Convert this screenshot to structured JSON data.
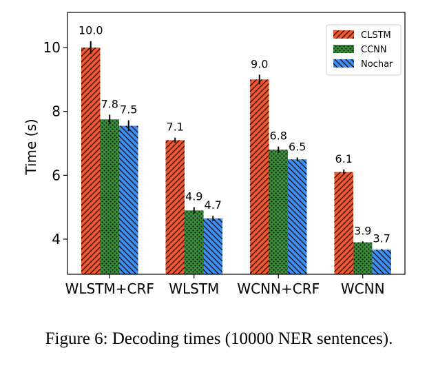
{
  "chart_data": {
    "type": "bar",
    "title": "",
    "xlabel": "",
    "ylabel": "Time (s)",
    "ylim": [
      2.9,
      11.1
    ],
    "yticks": [
      4,
      6,
      8,
      10
    ],
    "categories": [
      "WLSTM+CRF",
      "WLSTM",
      "WCNN+CRF",
      "WCNN"
    ],
    "series": [
      {
        "name": "CLSTM",
        "values": [
          10.0,
          7.1,
          9.0,
          6.1
        ],
        "labels": [
          "10.0",
          "7.1",
          "9.0",
          "6.1"
        ],
        "errors": [
          0.2,
          0.08,
          0.15,
          0.08
        ],
        "color": "#f0552d",
        "hatch": "diagonal"
      },
      {
        "name": "CCNN",
        "values": [
          7.75,
          4.9,
          6.8,
          3.9
        ],
        "labels": [
          "7.8",
          "4.9",
          "6.8",
          "3.9"
        ],
        "errors": [
          0.15,
          0.1,
          0.1,
          0.03
        ],
        "color": "#3a8a3a",
        "hatch": "dots"
      },
      {
        "name": "Nochar",
        "values": [
          7.55,
          4.65,
          6.5,
          3.67
        ],
        "labels": [
          "7.5",
          "4.7",
          "6.5",
          "3.7"
        ],
        "errors": [
          0.17,
          0.08,
          0.06,
          0.02
        ],
        "color": "#3d8ff5",
        "hatch": "backdiagonal"
      }
    ],
    "legend_position": "top-right",
    "grid": false,
    "has_error_bars": true
  },
  "caption": "Figure 6: Decoding times (10000 NER sentences)."
}
